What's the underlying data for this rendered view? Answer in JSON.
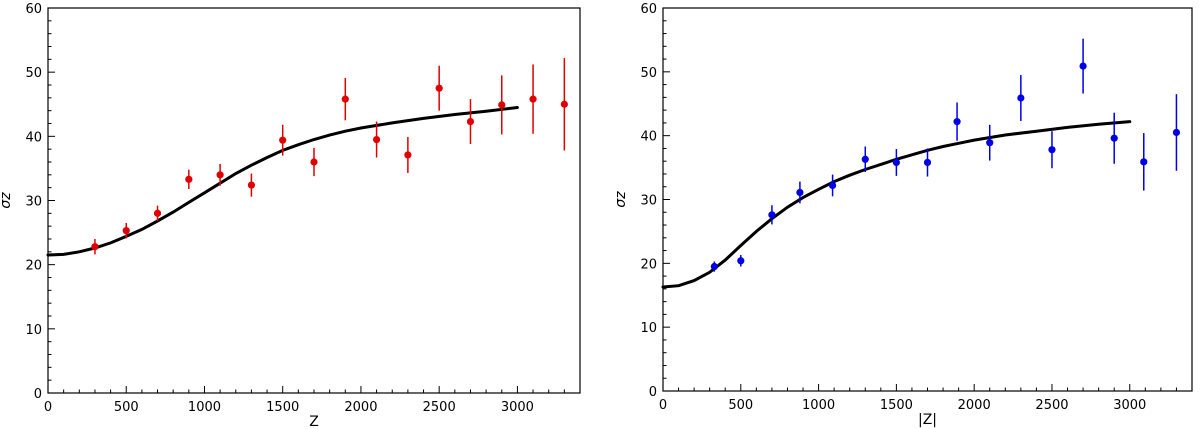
{
  "chart_data": [
    {
      "type": "scatter",
      "title": "",
      "xlabel": "Z",
      "ylabel": "σz",
      "xlim": [
        0,
        3400
      ],
      "ylim": [
        0,
        60
      ],
      "xticks": [
        0,
        500,
        1000,
        1500,
        2000,
        2500,
        3000
      ],
      "yticks": [
        0,
        10,
        20,
        30,
        40,
        50,
        60
      ],
      "marker_color": "#e00000",
      "points": [
        {
          "x": 300,
          "y": 22.8,
          "err": 1.2
        },
        {
          "x": 500,
          "y": 25.3,
          "err": 1.2
        },
        {
          "x": 700,
          "y": 28.0,
          "err": 1.2
        },
        {
          "x": 900,
          "y": 33.3,
          "err": 1.5
        },
        {
          "x": 1100,
          "y": 34.0,
          "err": 1.7
        },
        {
          "x": 1300,
          "y": 32.4,
          "err": 1.8
        },
        {
          "x": 1500,
          "y": 39.4,
          "err": 2.4
        },
        {
          "x": 1700,
          "y": 36.0,
          "err": 2.2
        },
        {
          "x": 1900,
          "y": 45.8,
          "err": 3.3
        },
        {
          "x": 2100,
          "y": 39.5,
          "err": 2.8
        },
        {
          "x": 2300,
          "y": 37.1,
          "err": 2.8
        },
        {
          "x": 2500,
          "y": 47.5,
          "err": 3.5
        },
        {
          "x": 2700,
          "y": 42.3,
          "err": 3.5
        },
        {
          "x": 2900,
          "y": 44.9,
          "err": 4.6
        },
        {
          "x": 3100,
          "y": 45.8,
          "err": 5.4
        },
        {
          "x": 3300,
          "y": 45.0,
          "err": 7.2
        }
      ],
      "model_curve": {
        "x": [
          0,
          100,
          200,
          300,
          400,
          500,
          600,
          700,
          800,
          900,
          1000,
          1100,
          1200,
          1300,
          1400,
          1500,
          1600,
          1700,
          1800,
          1900,
          2000,
          2200,
          2400,
          2600,
          2800,
          3000
        ],
        "y": [
          21.5,
          21.6,
          22.0,
          22.6,
          23.4,
          24.4,
          25.5,
          26.8,
          28.2,
          29.7,
          31.2,
          32.7,
          34.2,
          35.5,
          36.7,
          37.8,
          38.7,
          39.5,
          40.2,
          40.8,
          41.3,
          42.1,
          42.8,
          43.4,
          43.9,
          44.5
        ]
      }
    },
    {
      "type": "scatter",
      "title": "",
      "xlabel": "|Z|",
      "ylabel": "σz",
      "xlim": [
        0,
        3400
      ],
      "ylim": [
        0,
        60
      ],
      "xticks": [
        0,
        500,
        1000,
        1500,
        2000,
        2500,
        3000
      ],
      "yticks": [
        0,
        10,
        20,
        30,
        40,
        50,
        60
      ],
      "marker_color": "#0000e6",
      "points": [
        {
          "x": 330,
          "y": 19.5,
          "err": 0.8
        },
        {
          "x": 500,
          "y": 20.4,
          "err": 0.9
        },
        {
          "x": 700,
          "y": 27.6,
          "err": 1.5
        },
        {
          "x": 880,
          "y": 31.1,
          "err": 1.7
        },
        {
          "x": 1090,
          "y": 32.2,
          "err": 1.7
        },
        {
          "x": 1300,
          "y": 36.3,
          "err": 2.0
        },
        {
          "x": 1500,
          "y": 35.8,
          "err": 2.1
        },
        {
          "x": 1700,
          "y": 35.8,
          "err": 2.2
        },
        {
          "x": 1890,
          "y": 42.2,
          "err": 3.0
        },
        {
          "x": 2100,
          "y": 38.9,
          "err": 2.8
        },
        {
          "x": 2300,
          "y": 45.9,
          "err": 3.6
        },
        {
          "x": 2500,
          "y": 37.8,
          "err": 2.9
        },
        {
          "x": 2700,
          "y": 50.9,
          "err": 4.3
        },
        {
          "x": 2900,
          "y": 39.6,
          "err": 4.0
        },
        {
          "x": 3090,
          "y": 35.9,
          "err": 4.5
        },
        {
          "x": 3300,
          "y": 40.5,
          "err": 6.0
        }
      ],
      "model_curve": {
        "x": [
          0,
          100,
          200,
          300,
          400,
          500,
          600,
          700,
          800,
          900,
          1000,
          1100,
          1200,
          1300,
          1400,
          1500,
          1600,
          1700,
          1800,
          1900,
          2000,
          2200,
          2400,
          2600,
          2800,
          3000
        ],
        "y": [
          16.3,
          16.5,
          17.3,
          18.6,
          20.5,
          22.8,
          25.0,
          27.0,
          28.8,
          30.3,
          31.6,
          32.8,
          33.8,
          34.7,
          35.5,
          36.3,
          37.0,
          37.7,
          38.3,
          38.8,
          39.3,
          40.1,
          40.7,
          41.3,
          41.8,
          42.2
        ]
      }
    }
  ]
}
